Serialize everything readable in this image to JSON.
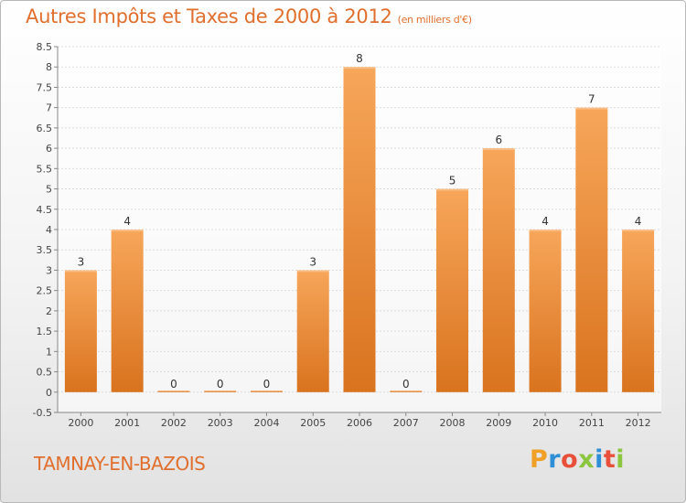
{
  "chart_data": {
    "type": "bar",
    "title": "Autres Impôts et Taxes de 2000 à 2012",
    "subtitle": "(en milliers d'€)",
    "categories": [
      "2000",
      "2001",
      "2002",
      "2003",
      "2004",
      "2005",
      "2006",
      "2007",
      "2008",
      "2009",
      "2010",
      "2011",
      "2012"
    ],
    "values": [
      3,
      4,
      0,
      0,
      0,
      3,
      8,
      0,
      5,
      6,
      4,
      7,
      4
    ],
    "data_labels": [
      "3",
      "4",
      "0",
      "0",
      "0",
      "3",
      "8",
      "0",
      "5",
      "6",
      "4",
      "7",
      "4"
    ],
    "y_ticks": [
      -0.5,
      0,
      0.5,
      1,
      1.5,
      2,
      2.5,
      3,
      3.5,
      4,
      4.5,
      5,
      5.5,
      6,
      6.5,
      7,
      7.5,
      8,
      8.5
    ],
    "y_tick_labels": [
      "-0.5",
      "0",
      "0.5",
      "1",
      "1.5",
      "2",
      "2.5",
      "3",
      "3.5",
      "4",
      "4.5",
      "5",
      "5.5",
      "6",
      "6.5",
      "7",
      "7.5",
      "8",
      "8.5"
    ],
    "ylim": [
      -0.5,
      8.5
    ],
    "grid": true,
    "bar_color_top": "#f7a65a",
    "bar_color_bottom": "#d9731e"
  },
  "footer": {
    "town": "TAMNAY-EN-BAZOIS",
    "logo_letters": [
      "P",
      "r",
      "o",
      "x",
      "i",
      "t",
      "i"
    ],
    "logo_colors": [
      "#f0a026",
      "#2f8fd6",
      "#e8503a",
      "#8cc63e",
      "#2f8fd6",
      "#e8503a",
      "#8cc63e"
    ]
  }
}
